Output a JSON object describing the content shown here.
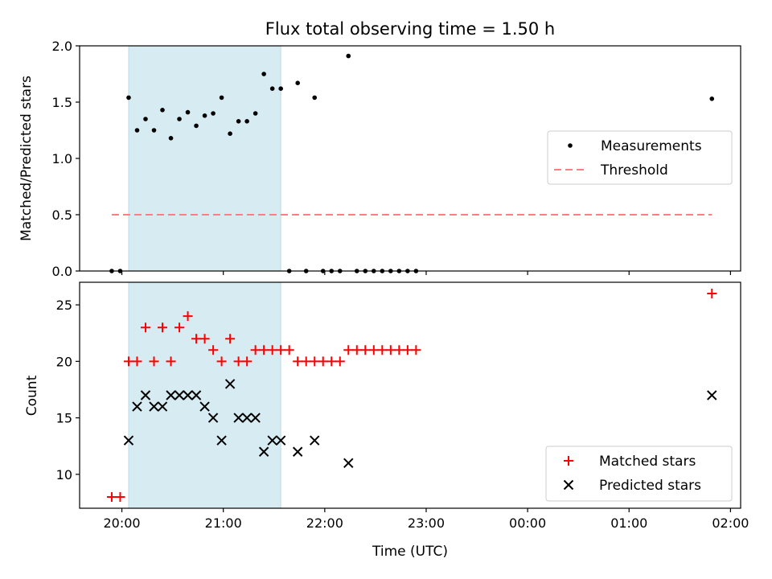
{
  "colors": {
    "measurement": "#000000",
    "threshold": "#ff7f7f",
    "matched": "#ff0000",
    "predicted": "#000000",
    "shade": "#add8e6"
  },
  "chart_data": [
    {
      "type": "scatter",
      "title": "Flux total observing time = 1.50 h",
      "xlabel": "",
      "ylabel": "Matched/Predicted stars",
      "ylim": [
        0,
        2.0
      ],
      "yticks": [
        0.0,
        0.5,
        1.0,
        1.5,
        2.0
      ],
      "ytick_labels": [
        "0.0",
        "0.5",
        "1.0",
        "1.5",
        "2.0"
      ],
      "xlim": [
        "19:35",
        "02:06"
      ],
      "xticks": [
        "20:00",
        "21:00",
        "22:00",
        "23:00",
        "00:00",
        "01:00",
        "02:00"
      ],
      "grid": false,
      "legend": "center-right",
      "shaded_span": [
        "20:04",
        "21:34"
      ],
      "series": [
        {
          "name": "Measurements",
          "marker": "dot",
          "x": [
            "19:54",
            "19:59",
            "20:04",
            "20:09",
            "20:14",
            "20:19",
            "20:24",
            "20:29",
            "20:34",
            "20:39",
            "20:44",
            "20:49",
            "20:54",
            "20:59",
            "21:04",
            "21:09",
            "21:14",
            "21:19",
            "21:24",
            "21:29",
            "21:34",
            "21:39",
            "21:44",
            "21:49",
            "21:54",
            "21:59",
            "22:04",
            "22:09",
            "22:14",
            "22:19",
            "22:24",
            "22:29",
            "22:34",
            "22:39",
            "22:44",
            "22:49",
            "22:54",
            "01:49"
          ],
          "y": [
            0,
            0,
            1.54,
            1.25,
            1.35,
            1.25,
            1.43,
            1.18,
            1.35,
            1.41,
            1.29,
            1.38,
            1.4,
            1.54,
            1.22,
            1.33,
            1.33,
            1.4,
            1.75,
            1.62,
            1.62,
            0,
            1.67,
            0,
            1.54,
            0,
            0,
            0,
            1.91,
            0,
            0,
            0,
            0,
            0,
            0,
            0,
            0,
            1.53
          ]
        },
        {
          "name": "Threshold",
          "style": "dashed-line",
          "x": [
            "19:54",
            "01:49"
          ],
          "y": [
            0.5,
            0.5
          ]
        }
      ]
    },
    {
      "type": "scatter",
      "title": "",
      "xlabel": "Time (UTC)",
      "ylabel": "Count",
      "ylim": [
        7,
        27
      ],
      "yticks": [
        10,
        15,
        20,
        25
      ],
      "ytick_labels": [
        "10",
        "15",
        "20",
        "25"
      ],
      "xlim": [
        "19:35",
        "02:06"
      ],
      "xticks": [
        "20:00",
        "21:00",
        "22:00",
        "23:00",
        "00:00",
        "01:00",
        "02:00"
      ],
      "xtick_labels": [
        "20:00",
        "21:00",
        "22:00",
        "23:00",
        "00:00",
        "01:00",
        "02:00"
      ],
      "grid": false,
      "legend": "bottom-right",
      "shaded_span": [
        "20:04",
        "21:34"
      ],
      "series": [
        {
          "name": "Matched stars",
          "marker": "plus",
          "x": [
            "19:54",
            "19:59",
            "20:04",
            "20:09",
            "20:14",
            "20:19",
            "20:24",
            "20:29",
            "20:34",
            "20:39",
            "20:44",
            "20:49",
            "20:54",
            "20:59",
            "21:04",
            "21:09",
            "21:14",
            "21:19",
            "21:24",
            "21:29",
            "21:34",
            "21:39",
            "21:44",
            "21:49",
            "21:54",
            "21:59",
            "22:04",
            "22:09",
            "22:14",
            "22:19",
            "22:24",
            "22:29",
            "22:34",
            "22:39",
            "22:44",
            "22:49",
            "22:54",
            "01:49"
          ],
          "y": [
            8,
            8,
            20,
            20,
            23,
            20,
            23,
            20,
            23,
            24,
            22,
            22,
            21,
            20,
            22,
            20,
            20,
            21,
            21,
            21,
            21,
            21,
            20,
            20,
            20,
            20,
            20,
            20,
            21,
            21,
            21,
            21,
            21,
            21,
            21,
            21,
            21,
            26
          ]
        },
        {
          "name": "Predicted stars",
          "marker": "x",
          "x": [
            "20:04",
            "20:09",
            "20:14",
            "20:19",
            "20:24",
            "20:29",
            "20:34",
            "20:39",
            "20:44",
            "20:49",
            "20:54",
            "20:59",
            "21:04",
            "21:09",
            "21:14",
            "21:19",
            "21:24",
            "21:29",
            "21:34",
            "21:44",
            "21:54",
            "22:14",
            "01:49"
          ],
          "y": [
            13,
            16,
            17,
            16,
            16,
            17,
            17,
            17,
            17,
            16,
            15,
            13,
            18,
            15,
            15,
            15,
            12,
            13,
            13,
            12,
            13,
            11,
            17
          ]
        }
      ]
    }
  ]
}
